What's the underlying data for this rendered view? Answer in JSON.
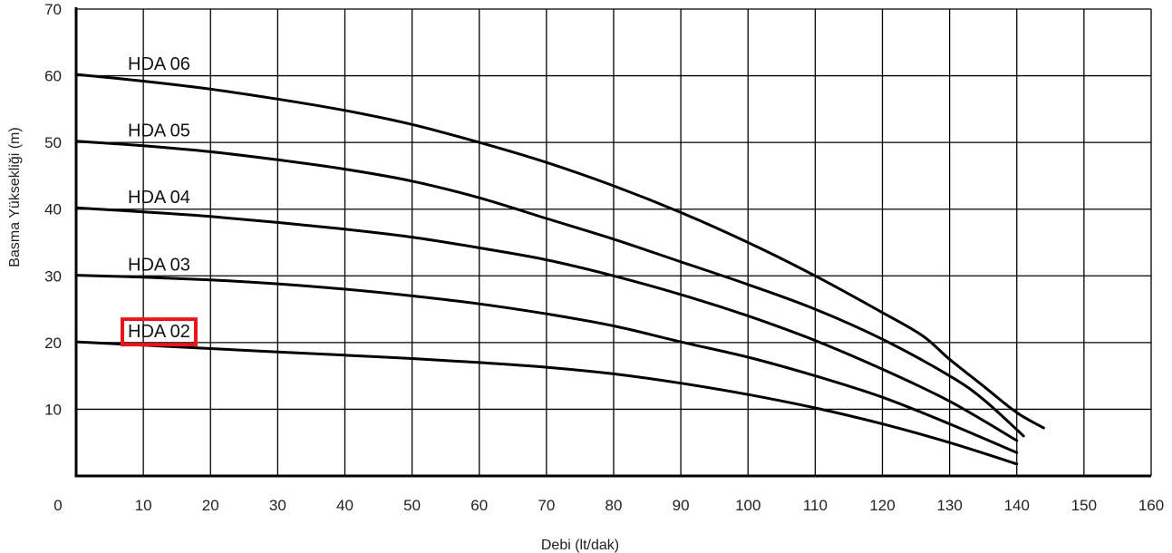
{
  "chart_data": {
    "type": "line",
    "title": "",
    "xlabel": "Debi (lt/dak)",
    "ylabel": "Basma Yüksekliği (m)",
    "xlim": [
      0,
      160
    ],
    "ylim": [
      0,
      70
    ],
    "xticks": [
      "0",
      "10",
      "20",
      "30",
      "40",
      "50",
      "60",
      "70",
      "80",
      "90",
      "100",
      "110",
      "120",
      "130",
      "140",
      "150",
      "160"
    ],
    "yticks": [
      "10",
      "20",
      "30",
      "40",
      "50",
      "60",
      "70"
    ],
    "grid": true,
    "highlight": {
      "series": "HDA 02",
      "color": "#e8161b"
    },
    "series": [
      {
        "name": "HDA 06",
        "x": [
          0,
          10,
          20,
          30,
          40,
          50,
          60,
          70,
          80,
          90,
          100,
          110,
          120,
          126,
          130,
          135,
          140,
          144
        ],
        "y": [
          60.2,
          59.2,
          58.0,
          56.5,
          54.8,
          52.7,
          50.0,
          47.0,
          43.5,
          39.5,
          35.0,
          30.0,
          24.5,
          21.0,
          17.5,
          13.5,
          9.5,
          7.2
        ]
      },
      {
        "name": "HDA 05",
        "x": [
          0,
          10,
          20,
          30,
          40,
          50,
          60,
          70,
          80,
          90,
          100,
          110,
          120,
          130,
          135,
          141
        ],
        "y": [
          50.2,
          49.5,
          48.6,
          47.4,
          46.0,
          44.2,
          41.7,
          38.6,
          35.5,
          32.1,
          28.7,
          25.0,
          20.5,
          15.0,
          11.5,
          6.0
        ]
      },
      {
        "name": "HDA 04",
        "x": [
          0,
          10,
          20,
          30,
          40,
          50,
          60,
          70,
          80,
          90,
          100,
          110,
          120,
          130,
          140
        ],
        "y": [
          40.2,
          39.6,
          38.9,
          38.0,
          37.0,
          35.8,
          34.2,
          32.4,
          30.0,
          27.2,
          24.0,
          20.3,
          16.0,
          11.2,
          5.3
        ]
      },
      {
        "name": "HDA 03",
        "x": [
          0,
          10,
          20,
          30,
          40,
          50,
          60,
          70,
          80,
          90,
          100,
          110,
          120,
          130,
          140
        ],
        "y": [
          30.1,
          29.8,
          29.4,
          28.8,
          28.0,
          27.0,
          25.8,
          24.3,
          22.5,
          20.1,
          17.8,
          15.0,
          11.8,
          7.8,
          3.5
        ]
      },
      {
        "name": "HDA 02",
        "x": [
          0,
          10,
          20,
          30,
          40,
          50,
          60,
          70,
          80,
          90,
          100,
          110,
          120,
          130,
          140
        ],
        "y": [
          20.1,
          19.6,
          19.1,
          18.6,
          18.1,
          17.6,
          17.0,
          16.3,
          15.3,
          13.9,
          12.2,
          10.2,
          7.8,
          5.0,
          1.8
        ]
      }
    ]
  }
}
